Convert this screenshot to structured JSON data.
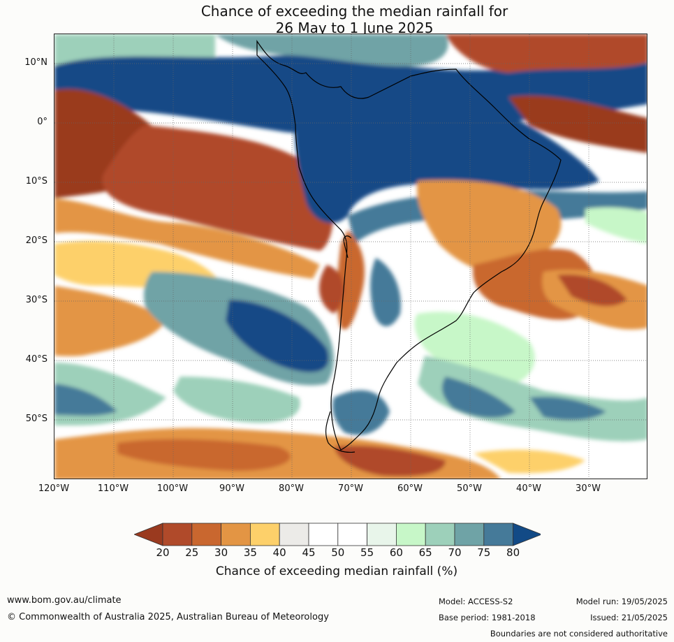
{
  "title": {
    "line1": "Chance of exceeding the median rainfall for",
    "line2": "26 May to 1 June 2025"
  },
  "map": {
    "lat_labels": [
      "10°N",
      "0°",
      "10°S",
      "20°S",
      "30°S",
      "40°S",
      "50°S"
    ],
    "lon_labels": [
      "120°W",
      "110°W",
      "100°W",
      "90°W",
      "80°W",
      "70°W",
      "60°W",
      "50°W",
      "40°W",
      "30°W"
    ],
    "extent": {
      "lon_min": -120,
      "lon_max": -20,
      "lat_min": -60,
      "lat_max": 15
    }
  },
  "colorbar": {
    "title": "Chance of exceeding median rainfall (%)",
    "ticks": [
      "20",
      "25",
      "30",
      "35",
      "40",
      "45",
      "50",
      "55",
      "60",
      "65",
      "70",
      "75",
      "80"
    ],
    "colors": [
      "#9a3a1f",
      "#b04a2a",
      "#c9672f",
      "#e39544",
      "#fdd06a",
      "#ecebe8",
      "#ffffff",
      "#ffffff",
      "#e8f5ea",
      "#c7f7c8",
      "#9dd0ba",
      "#6fa3a6",
      "#457a99",
      "#124a86"
    ]
  },
  "footer": {
    "website": "www.bom.gov.au/climate",
    "copyright": "© Commonwealth of Australia 2025, Australian Bureau of Meteorology",
    "model": "Model: ACCESS-S2",
    "base_period": "Base period: 1981-2018",
    "model_run": "Model run: 19/05/2025",
    "issued": "Issued: 21/05/2025",
    "disclaimer": "Boundaries are not considered authoritative"
  }
}
